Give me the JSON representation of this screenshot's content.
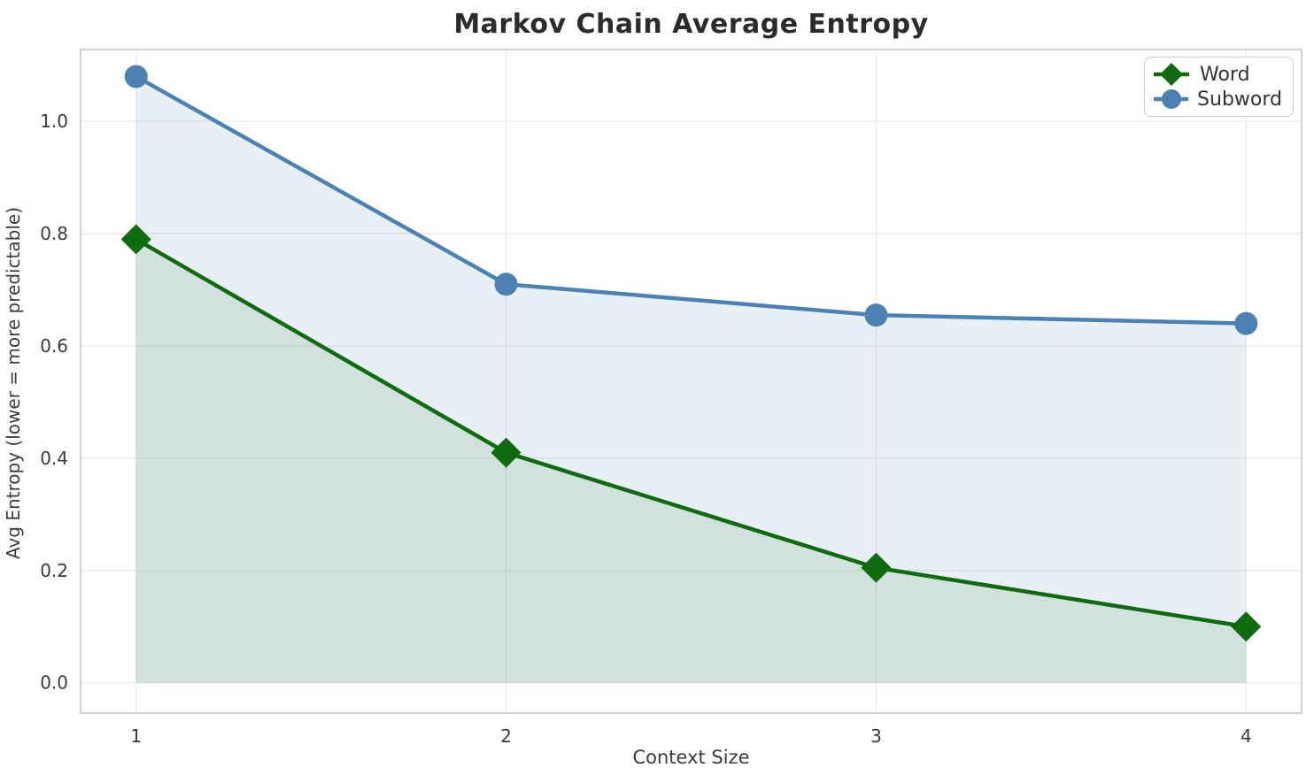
{
  "chart_data": {
    "type": "line",
    "title": "Markov Chain Average Entropy",
    "xlabel": "Context Size",
    "ylabel": "Avg Entropy (lower = more predictable)",
    "x": [
      1,
      2,
      3,
      4
    ],
    "xlim": [
      0.85,
      4.15
    ],
    "ylim": [
      -0.054,
      1.128
    ],
    "grid": true,
    "fill_to_zero": true,
    "legend_position": "top-right",
    "xticks": [
      {
        "label": "1",
        "value": 1
      },
      {
        "label": "2",
        "value": 2
      },
      {
        "label": "3",
        "value": 3
      },
      {
        "label": "4",
        "value": 4
      }
    ],
    "yticks": [
      {
        "label": "0.0",
        "value": 0.0
      },
      {
        "label": "0.2",
        "value": 0.2
      },
      {
        "label": "0.4",
        "value": 0.4
      },
      {
        "label": "0.6",
        "value": 0.6
      },
      {
        "label": "0.8",
        "value": 0.8
      },
      {
        "label": "1.0",
        "value": 1.0
      }
    ],
    "series": [
      {
        "name": "Word",
        "values": [
          0.79,
          0.41,
          0.205,
          0.1
        ],
        "color": "#0e6b0e",
        "marker": "diamond",
        "fill_opacity": 0.1
      },
      {
        "name": "Subword",
        "values": [
          1.08,
          0.71,
          0.655,
          0.64
        ],
        "color": "#4a82b4",
        "marker": "circle",
        "fill_opacity": 0.13
      }
    ],
    "colors": {
      "grid": "#ececec",
      "spine": "#cccccc",
      "tick_text": "#3b3b3b",
      "title_text": "#2b2b2b"
    }
  }
}
